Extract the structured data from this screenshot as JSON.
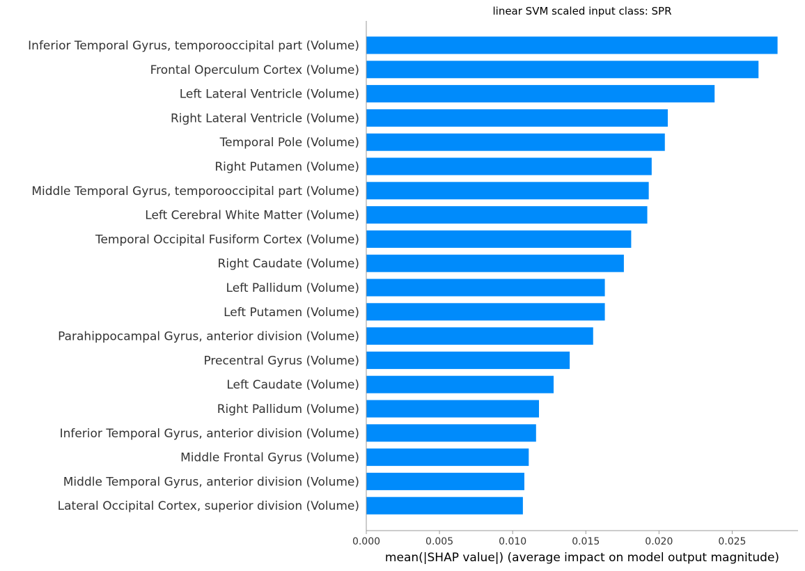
{
  "chart_data": {
    "type": "bar",
    "orientation": "horizontal",
    "title": "linear SVM scaled input class: SPR",
    "xlabel": "mean(|SHAP value|) (average impact on model output magnitude)",
    "ylabel": "",
    "xlim": [
      0,
      0.0295
    ],
    "xticks": [
      0.0,
      0.005,
      0.01,
      0.015,
      0.02,
      0.025
    ],
    "xtick_labels": [
      "0.000",
      "0.005",
      "0.010",
      "0.015",
      "0.020",
      "0.025"
    ],
    "grid": false,
    "bar_color": "#008bfb",
    "categories": [
      "Inferior Temporal Gyrus, temporooccipital part (Volume)",
      "Frontal Operculum Cortex (Volume)",
      "Left Lateral Ventricle (Volume)",
      "Right Lateral Ventricle (Volume)",
      "Temporal Pole (Volume)",
      "Right Putamen (Volume)",
      "Middle Temporal Gyrus, temporooccipital part (Volume)",
      "Left Cerebral White Matter (Volume)",
      "Temporal Occipital Fusiform Cortex (Volume)",
      "Right Caudate (Volume)",
      "Left Pallidum (Volume)",
      "Left Putamen (Volume)",
      "Parahippocampal Gyrus, anterior division (Volume)",
      "Precentral Gyrus (Volume)",
      "Left Caudate (Volume)",
      "Right Pallidum (Volume)",
      "Inferior Temporal Gyrus, anterior division (Volume)",
      "Middle Frontal Gyrus (Volume)",
      "Middle Temporal Gyrus, anterior division (Volume)",
      "Lateral Occipital Cortex, superior division (Volume)"
    ],
    "values": [
      0.0281,
      0.0268,
      0.0238,
      0.0206,
      0.0204,
      0.0195,
      0.0193,
      0.0192,
      0.0181,
      0.0176,
      0.0163,
      0.0163,
      0.0155,
      0.0139,
      0.0128,
      0.0118,
      0.0116,
      0.0111,
      0.0108,
      0.0107
    ]
  }
}
